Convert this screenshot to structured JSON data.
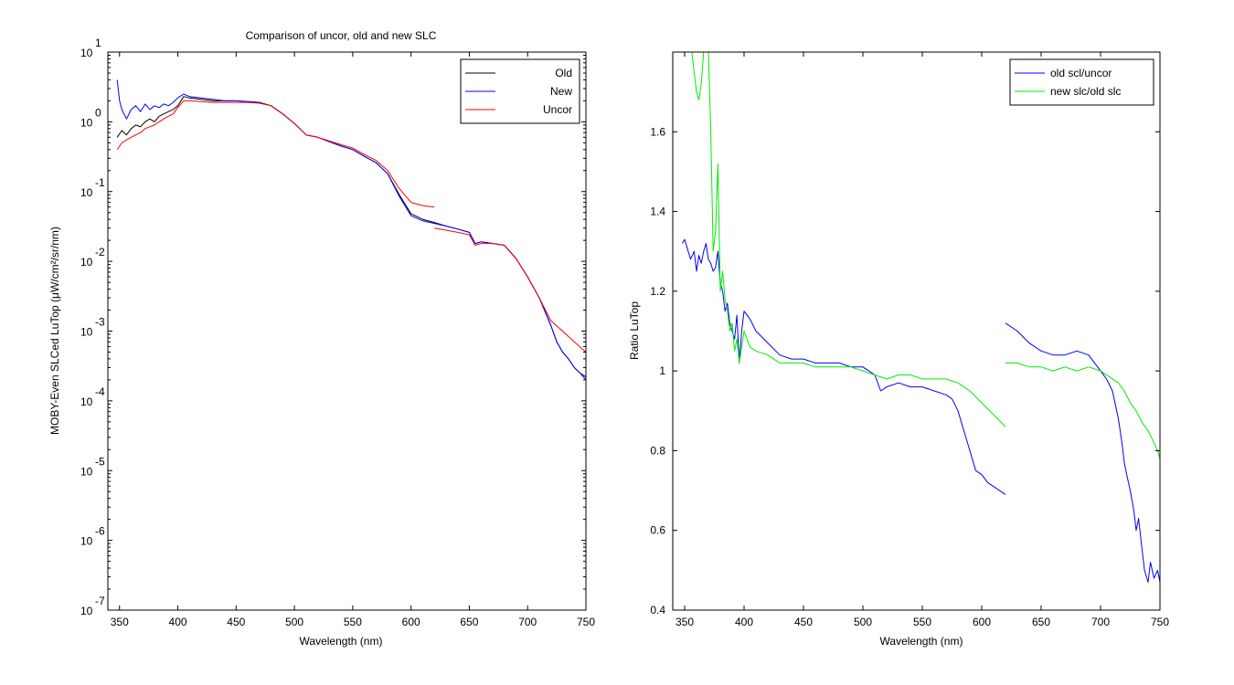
{
  "chart_data": [
    {
      "type": "line",
      "title": "Comparison of uncor, old and new SLC",
      "xlabel": "Wavelength (nm)",
      "ylabel": "MOBY-Even SLCed LuTop (μW/cm²/sr/nm)",
      "yscale": "log",
      "xlim": [
        340,
        750
      ],
      "ylim": [
        1e-07,
        10
      ],
      "x_ticks": [
        350,
        400,
        450,
        500,
        550,
        600,
        650,
        700,
        750
      ],
      "y_ticks": [
        {
          "base": "10",
          "exp": "1",
          "value": 10
        },
        {
          "base": "10",
          "exp": "0",
          "value": 1
        },
        {
          "base": "10",
          "exp": "-1",
          "value": 0.1
        },
        {
          "base": "10",
          "exp": "-2",
          "value": 0.01
        },
        {
          "base": "10",
          "exp": "-3",
          "value": 0.001
        },
        {
          "base": "10",
          "exp": "-4",
          "value": 0.0001
        },
        {
          "base": "10",
          "exp": "-5",
          "value": 1e-05
        },
        {
          "base": "10",
          "exp": "-6",
          "value": 1e-06
        },
        {
          "base": "10",
          "exp": "-7",
          "value": 1e-07
        }
      ],
      "legend_position": "top-right",
      "series": [
        {
          "name": "Old",
          "color": "#000000",
          "segments": [
            {
              "x": [
                348,
                352,
                356,
                360,
                364,
                368,
                372,
                376,
                380,
                384,
                388,
                392,
                396,
                400,
                405,
                410,
                420,
                430,
                440,
                450,
                460,
                470,
                480,
                490,
                500,
                510,
                520,
                530,
                540,
                550,
                560,
                570,
                580,
                590,
                600,
                610,
                620,
                630,
                640,
                650,
                655,
                660,
                670,
                680,
                690,
                700,
                710,
                720,
                725,
                730,
                735,
                740,
                745,
                750
              ],
              "y": [
                0.6,
                0.75,
                0.65,
                0.8,
                0.9,
                0.85,
                1.0,
                1.1,
                1.0,
                1.2,
                1.3,
                1.4,
                1.5,
                1.7,
                2.3,
                2.2,
                2.1,
                2.0,
                2.0,
                2.0,
                1.95,
                1.9,
                1.7,
                1.3,
                0.95,
                0.65,
                0.6,
                0.52,
                0.45,
                0.4,
                0.32,
                0.26,
                0.18,
                0.09,
                0.048,
                0.04,
                0.036,
                0.032,
                0.029,
                0.026,
                0.018,
                0.019,
                0.018,
                0.017,
                0.011,
                0.006,
                0.003,
                0.0012,
                0.0007,
                0.0005,
                0.0004,
                0.0003,
                0.00025,
                0.00022
              ]
            }
          ]
        },
        {
          "name": "New",
          "color": "#0000ff",
          "segments": [
            {
              "x": [
                348,
                350,
                352,
                356,
                360,
                364,
                368,
                372,
                376,
                380,
                384,
                388,
                392,
                396,
                400,
                405,
                410,
                420,
                430,
                440,
                450,
                460,
                470,
                480,
                490,
                500,
                510,
                520,
                530,
                540,
                550,
                560,
                570,
                580,
                590,
                600,
                610,
                620,
                630,
                640,
                650,
                655,
                660,
                670,
                680,
                690,
                700,
                710,
                720,
                725,
                730,
                735,
                740,
                745,
                750
              ],
              "y": [
                4.0,
                2.0,
                1.5,
                1.1,
                1.5,
                1.7,
                1.4,
                1.8,
                1.5,
                1.7,
                1.6,
                1.8,
                1.7,
                1.9,
                2.2,
                2.5,
                2.3,
                2.2,
                2.1,
                2.0,
                2.0,
                1.95,
                1.9,
                1.7,
                1.3,
                0.95,
                0.65,
                0.6,
                0.52,
                0.45,
                0.4,
                0.32,
                0.26,
                0.18,
                0.085,
                0.045,
                0.038,
                0.035,
                0.032,
                0.029,
                0.026,
                0.018,
                0.019,
                0.018,
                0.017,
                0.011,
                0.006,
                0.003,
                0.0012,
                0.0007,
                0.0005,
                0.0004,
                0.0003,
                0.00025,
                0.0002
              ]
            }
          ]
        },
        {
          "name": "Uncor",
          "color": "#ff0000",
          "segments": [
            {
              "x": [
                348,
                352,
                356,
                360,
                364,
                368,
                372,
                376,
                380,
                384,
                388,
                392,
                396,
                400,
                405,
                410,
                420,
                430,
                440,
                450,
                460,
                470,
                480,
                490,
                500,
                510,
                520,
                530,
                540,
                550,
                560,
                570,
                580,
                590,
                600,
                610,
                620
              ],
              "y": [
                0.4,
                0.5,
                0.55,
                0.6,
                0.65,
                0.7,
                0.8,
                0.85,
                0.9,
                1.0,
                1.1,
                1.2,
                1.3,
                1.6,
                2.0,
                2.0,
                1.95,
                1.9,
                1.9,
                1.9,
                1.9,
                1.85,
                1.7,
                1.3,
                0.95,
                0.65,
                0.6,
                0.53,
                0.47,
                0.42,
                0.34,
                0.28,
                0.2,
                0.11,
                0.07,
                0.063,
                0.06
              ]
            },
            {
              "x": [
                620,
                630,
                640,
                650,
                655,
                660,
                670,
                680,
                690,
                700,
                710,
                720,
                730,
                740,
                750
              ],
              "y": [
                0.03,
                0.028,
                0.026,
                0.024,
                0.017,
                0.018,
                0.018,
                0.017,
                0.011,
                0.006,
                0.003,
                0.0014,
                0.001,
                0.0007,
                0.0005
              ]
            }
          ]
        }
      ]
    },
    {
      "type": "line",
      "title": "",
      "xlabel": "Wavelength (nm)",
      "ylabel": "Ratio LuTop",
      "yscale": "linear",
      "xlim": [
        340,
        750
      ],
      "ylim": [
        0.4,
        1.8
      ],
      "x_ticks": [
        350,
        400,
        450,
        500,
        550,
        600,
        650,
        700,
        750
      ],
      "y_ticks": [
        0.4,
        0.6,
        0.8,
        1,
        1.2,
        1.4,
        1.6
      ],
      "legend_position": "top-right",
      "series": [
        {
          "name": "old scl/uncor",
          "color": "#0000ff",
          "segments": [
            {
              "x": [
                348,
                350,
                352,
                355,
                358,
                360,
                362,
                364,
                366,
                368,
                370,
                372,
                374,
                376,
                378,
                380,
                382,
                384,
                386,
                388,
                390,
                392,
                394,
                396,
                398,
                400,
                405,
                410,
                420,
                430,
                440,
                450,
                460,
                470,
                480,
                490,
                500,
                505,
                510,
                515,
                520,
                530,
                540,
                550,
                560,
                570,
                575,
                580,
                585,
                590,
                595,
                600,
                605,
                610,
                615,
                620
              ],
              "y": [
                1.32,
                1.33,
                1.31,
                1.28,
                1.3,
                1.25,
                1.29,
                1.27,
                1.3,
                1.32,
                1.28,
                1.27,
                1.25,
                1.26,
                1.3,
                1.22,
                1.2,
                1.15,
                1.17,
                1.12,
                1.1,
                1.08,
                1.14,
                1.02,
                1.1,
                1.15,
                1.13,
                1.1,
                1.07,
                1.04,
                1.03,
                1.03,
                1.02,
                1.02,
                1.02,
                1.01,
                1.01,
                1.0,
                0.99,
                0.95,
                0.96,
                0.97,
                0.96,
                0.96,
                0.95,
                0.94,
                0.93,
                0.9,
                0.85,
                0.8,
                0.75,
                0.74,
                0.72,
                0.71,
                0.7,
                0.69
              ]
            },
            {
              "x": [
                620,
                630,
                640,
                650,
                660,
                670,
                680,
                690,
                695,
                700,
                705,
                710,
                715,
                718,
                720,
                722,
                725,
                728,
                730,
                732,
                735,
                737,
                740,
                742,
                745,
                748,
                750
              ],
              "y": [
                1.12,
                1.1,
                1.07,
                1.05,
                1.04,
                1.04,
                1.05,
                1.04,
                1.02,
                1.0,
                0.98,
                0.95,
                0.88,
                0.82,
                0.77,
                0.74,
                0.7,
                0.65,
                0.6,
                0.63,
                0.55,
                0.5,
                0.47,
                0.52,
                0.48,
                0.5,
                0.47
              ]
            }
          ]
        },
        {
          "name": "new slc/old slc",
          "color": "#00ee00",
          "segments": [
            {
              "x": [
                356,
                358,
                360,
                362,
                364,
                366,
                368,
                370,
                372,
                374,
                376,
                378,
                380,
                382,
                384,
                386,
                388,
                390,
                392,
                394,
                396,
                398,
                400,
                405,
                410,
                420,
                430,
                440,
                450,
                460,
                470,
                480,
                490,
                500,
                510,
                520,
                530,
                540,
                550,
                560,
                570,
                580,
                590,
                600,
                610,
                620
              ],
              "y": [
                1.8,
                1.75,
                1.7,
                1.68,
                1.72,
                1.8,
                1.8,
                1.8,
                1.6,
                1.3,
                1.35,
                1.52,
                1.2,
                1.25,
                1.18,
                1.15,
                1.1,
                1.12,
                1.05,
                1.08,
                1.02,
                1.06,
                1.1,
                1.06,
                1.05,
                1.04,
                1.02,
                1.02,
                1.02,
                1.01,
                1.01,
                1.01,
                1.01,
                1.0,
                0.99,
                0.98,
                0.99,
                0.99,
                0.98,
                0.98,
                0.98,
                0.97,
                0.95,
                0.92,
                0.89,
                0.86
              ]
            },
            {
              "x": [
                620,
                630,
                640,
                650,
                660,
                670,
                680,
                690,
                700,
                710,
                715,
                720,
                725,
                730,
                735,
                740,
                745,
                748,
                750
              ],
              "y": [
                1.02,
                1.02,
                1.01,
                1.01,
                1.0,
                1.01,
                1.0,
                1.01,
                1.0,
                0.98,
                0.97,
                0.95,
                0.92,
                0.9,
                0.87,
                0.85,
                0.82,
                0.8,
                0.78
              ]
            }
          ]
        }
      ]
    }
  ]
}
